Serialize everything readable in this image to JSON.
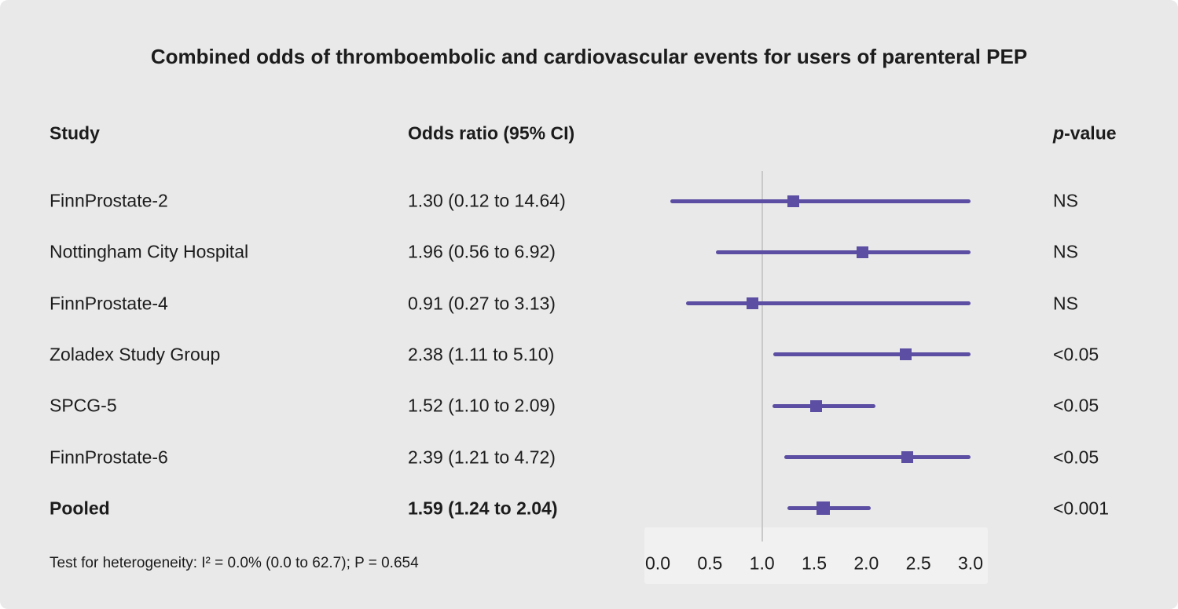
{
  "title": "Combined odds of thromboembolic and cardiovascular events for users of parenteral PEP",
  "columns": {
    "study": "Study",
    "odds_ratio": "Odds ratio (95% CI)",
    "p_italic": "p",
    "p_rest": "-value"
  },
  "footer_note": "Test for heterogeneity: I² = 0.0% (0.0 to 62.7); P = 0.654",
  "colors": {
    "marker": "#5c4ea2",
    "ci_line": "#5c4ea2",
    "reference_line": "#c9c9c9",
    "background": "#e9e9e9",
    "axis_band": "#f1f1f1",
    "text": "#1c1c1c"
  },
  "chart_data": {
    "type": "forest",
    "title": "Combined odds of thromboembolic and cardiovascular events for users of parenteral PEP",
    "xlabel": "Odds ratio",
    "x_min": 0.0,
    "x_max": 3.0,
    "ref_line": 1.0,
    "x_ticks": [
      "0.0",
      "0.5",
      "1.0",
      "1.5",
      "2.0",
      "2.5",
      "3.0"
    ],
    "studies": [
      {
        "study": "FinnProstate-2",
        "or": 1.3,
        "ci_low": 0.12,
        "ci_high": 14.64,
        "label": "1.30 (0.12 to 14.64)",
        "p": "NS",
        "bold": false
      },
      {
        "study": "Nottingham City Hospital",
        "or": 1.96,
        "ci_low": 0.56,
        "ci_high": 6.92,
        "label": "1.96 (0.56 to 6.92)",
        "p": "NS",
        "bold": false
      },
      {
        "study": "FinnProstate-4",
        "or": 0.91,
        "ci_low": 0.27,
        "ci_high": 3.13,
        "label": "0.91 (0.27 to 3.13)",
        "p": "NS",
        "bold": false
      },
      {
        "study": "Zoladex Study Group",
        "or": 2.38,
        "ci_low": 1.11,
        "ci_high": 5.1,
        "label": "2.38 (1.11 to 5.10)",
        "p": "<0.05",
        "bold": false
      },
      {
        "study": "SPCG-5",
        "or": 1.52,
        "ci_low": 1.1,
        "ci_high": 2.09,
        "label": "1.52 (1.10 to 2.09)",
        "p": "<0.05",
        "bold": false
      },
      {
        "study": "FinnProstate-6",
        "or": 2.39,
        "ci_low": 1.21,
        "ci_high": 4.72,
        "label": "2.39 (1.21 to 4.72)",
        "p": "<0.05",
        "bold": false
      },
      {
        "study": "Pooled",
        "or": 1.59,
        "ci_low": 1.24,
        "ci_high": 2.04,
        "label": "1.59 (1.24 to 2.04)",
        "p": "<0.001",
        "bold": true
      }
    ]
  }
}
